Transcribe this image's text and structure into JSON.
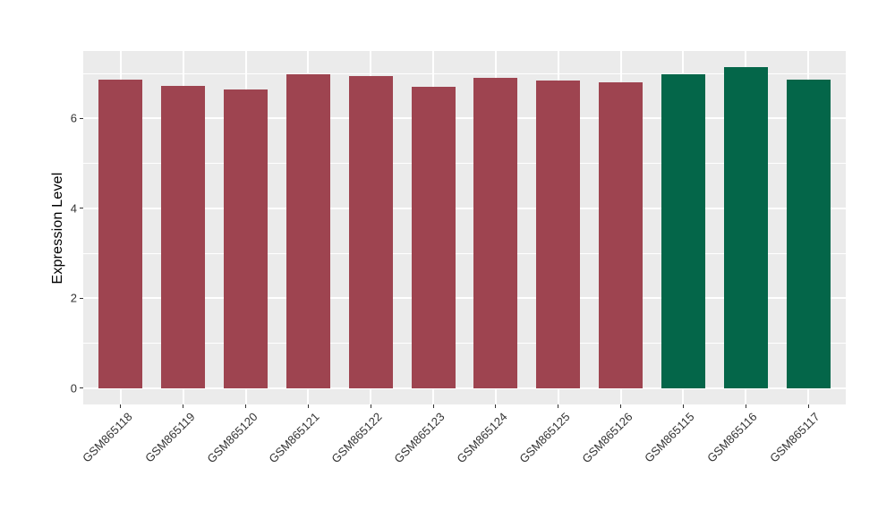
{
  "figure": {
    "background": "#ffffff",
    "panel_background": "#ebebeb",
    "gridline_color": "#ffffff",
    "tick_color": "#333333",
    "tick_label_color": "#333333",
    "axis_title_color": "#000000"
  },
  "chart_data": {
    "type": "bar",
    "title": "",
    "xlabel": "",
    "ylabel": "Expression Level",
    "categories": [
      "GSM865118",
      "GSM865119",
      "GSM865120",
      "GSM865121",
      "GSM865122",
      "GSM865123",
      "GSM865124",
      "GSM865125",
      "GSM865126",
      "GSM865115",
      "GSM865116",
      "GSM865117"
    ],
    "values": [
      6.87,
      6.73,
      6.65,
      6.98,
      6.94,
      6.7,
      6.91,
      6.84,
      6.8,
      6.99,
      7.15,
      6.87
    ],
    "bar_colors": [
      "#9e4450",
      "#9e4450",
      "#9e4450",
      "#9e4450",
      "#9e4450",
      "#9e4450",
      "#9e4450",
      "#9e4450",
      "#9e4450",
      "#046649",
      "#046649",
      "#046649"
    ],
    "group_colors": {
      "group1": "#9e4450",
      "group2": "#046649"
    },
    "yticks": [
      0,
      2,
      4,
      6
    ],
    "yticks_minor": [
      1,
      3,
      5,
      7
    ],
    "ylim": [
      -0.36,
      7.5
    ],
    "x_label_angle_deg": 45,
    "grid": "on",
    "legend_position": "none"
  }
}
